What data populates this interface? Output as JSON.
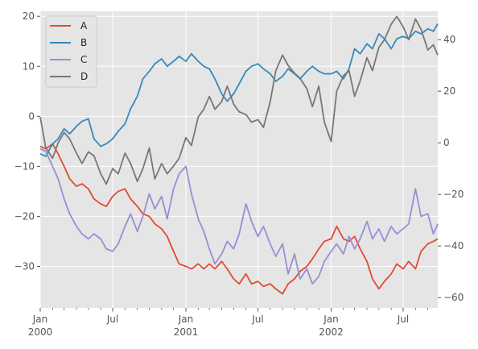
{
  "chart_data": {
    "type": "line",
    "title": "",
    "xlabel": "",
    "ylabel": "",
    "grid": true,
    "legend_position": "top-left",
    "x_range": [
      "2000-01-01",
      "2002-09-26"
    ],
    "x_ticks": [
      {
        "date": "2000-01-01",
        "label": "Jan",
        "sublabel": "2000"
      },
      {
        "date": "2000-07-01",
        "label": "Jul",
        "sublabel": ""
      },
      {
        "date": "2001-01-01",
        "label": "Jan",
        "sublabel": "2001"
      },
      {
        "date": "2001-07-01",
        "label": "Jul",
        "sublabel": ""
      },
      {
        "date": "2002-01-01",
        "label": "Jan",
        "sublabel": "2002"
      },
      {
        "date": "2002-07-01",
        "label": "Jul",
        "sublabel": ""
      }
    ],
    "y_left": {
      "ylim": [
        -38.3,
        21.0
      ],
      "ticks": [
        20,
        10,
        0,
        -10,
        -20,
        -30
      ]
    },
    "y_right": {
      "ylim": [
        -64,
        51
      ],
      "ticks": [
        40,
        20,
        0,
        -20,
        -40,
        -60
      ]
    },
    "series": [
      {
        "name": "A",
        "color": "#E24A33",
        "axis": "left",
        "points": [
          [
            "2000-01-01",
            -6.0
          ],
          [
            "2000-01-15",
            -6.5
          ],
          [
            "2000-02-01",
            -5.5
          ],
          [
            "2000-02-15",
            -7.5
          ],
          [
            "2000-03-01",
            -10.0
          ],
          [
            "2000-03-15",
            -12.5
          ],
          [
            "2000-04-01",
            -14.0
          ],
          [
            "2000-04-15",
            -13.5
          ],
          [
            "2000-05-01",
            -14.5
          ],
          [
            "2000-05-15",
            -16.5
          ],
          [
            "2000-06-01",
            -17.5
          ],
          [
            "2000-06-15",
            -18.0
          ],
          [
            "2000-07-01",
            -16.0
          ],
          [
            "2000-07-15",
            -15.0
          ],
          [
            "2000-08-01",
            -14.5
          ],
          [
            "2000-08-15",
            -16.5
          ],
          [
            "2000-09-01",
            -18.0
          ],
          [
            "2000-09-15",
            -19.5
          ],
          [
            "2000-10-01",
            -20.0
          ],
          [
            "2000-10-15",
            -21.5
          ],
          [
            "2000-11-01",
            -22.5
          ],
          [
            "2000-11-15",
            -24.0
          ],
          [
            "2000-12-01",
            -27.0
          ],
          [
            "2000-12-15",
            -29.5
          ],
          [
            "2001-01-01",
            -30.0
          ],
          [
            "2001-01-15",
            -30.5
          ],
          [
            "2001-02-01",
            -29.5
          ],
          [
            "2001-02-15",
            -30.5
          ],
          [
            "2001-03-01",
            -29.5
          ],
          [
            "2001-03-15",
            -30.5
          ],
          [
            "2001-04-01",
            -29.0
          ],
          [
            "2001-04-15",
            -30.5
          ],
          [
            "2001-05-01",
            -32.5
          ],
          [
            "2001-05-15",
            -33.5
          ],
          [
            "2001-06-01",
            -31.5
          ],
          [
            "2001-06-15",
            -33.5
          ],
          [
            "2001-07-01",
            -33.0
          ],
          [
            "2001-07-15",
            -34.0
          ],
          [
            "2001-08-01",
            -33.5
          ],
          [
            "2001-08-15",
            -34.5
          ],
          [
            "2001-09-01",
            -35.5
          ],
          [
            "2001-09-15",
            -33.5
          ],
          [
            "2001-10-01",
            -32.5
          ],
          [
            "2001-10-15",
            -31.0
          ],
          [
            "2001-11-01",
            -30.0
          ],
          [
            "2001-11-15",
            -28.5
          ],
          [
            "2001-12-01",
            -26.5
          ],
          [
            "2001-12-15",
            -25.0
          ],
          [
            "2002-01-01",
            -24.5
          ],
          [
            "2002-01-15",
            -22.0
          ],
          [
            "2002-02-01",
            -24.5
          ],
          [
            "2002-02-15",
            -25.0
          ],
          [
            "2002-03-01",
            -24.0
          ],
          [
            "2002-03-15",
            -26.5
          ],
          [
            "2002-04-01",
            -29.0
          ],
          [
            "2002-04-15",
            -32.5
          ],
          [
            "2002-05-01",
            -34.5
          ],
          [
            "2002-05-15",
            -33.0
          ],
          [
            "2002-06-01",
            -31.5
          ],
          [
            "2002-06-15",
            -29.5
          ],
          [
            "2002-07-01",
            -30.5
          ],
          [
            "2002-07-15",
            -29.0
          ],
          [
            "2002-08-01",
            -30.5
          ],
          [
            "2002-08-15",
            -27.0
          ],
          [
            "2002-09-01",
            -25.5
          ],
          [
            "2002-09-15",
            -25.0
          ],
          [
            "2002-09-26",
            -24.5
          ]
        ]
      },
      {
        "name": "B",
        "color": "#348ABD",
        "axis": "left",
        "points": [
          [
            "2000-01-01",
            -7.5
          ],
          [
            "2000-01-15",
            -8.0
          ],
          [
            "2000-02-01",
            -5.5
          ],
          [
            "2000-02-15",
            -4.5
          ],
          [
            "2000-03-01",
            -2.5
          ],
          [
            "2000-03-15",
            -3.5
          ],
          [
            "2000-04-01",
            -2.0
          ],
          [
            "2000-04-15",
            -1.0
          ],
          [
            "2000-05-01",
            -0.5
          ],
          [
            "2000-05-15",
            -4.5
          ],
          [
            "2000-06-01",
            -6.0
          ],
          [
            "2000-06-15",
            -5.5
          ],
          [
            "2000-07-01",
            -4.5
          ],
          [
            "2000-07-15",
            -3.0
          ],
          [
            "2000-08-01",
            -1.5
          ],
          [
            "2000-08-15",
            1.5
          ],
          [
            "2000-09-01",
            4.0
          ],
          [
            "2000-09-15",
            7.5
          ],
          [
            "2000-10-01",
            9.0
          ],
          [
            "2000-10-15",
            10.5
          ],
          [
            "2000-11-01",
            11.5
          ],
          [
            "2000-11-15",
            10.0
          ],
          [
            "2000-12-01",
            11.0
          ],
          [
            "2000-12-15",
            12.0
          ],
          [
            "2001-01-01",
            11.0
          ],
          [
            "2001-01-15",
            12.5
          ],
          [
            "2001-02-01",
            11.0
          ],
          [
            "2001-02-15",
            10.0
          ],
          [
            "2001-03-01",
            9.5
          ],
          [
            "2001-03-15",
            7.5
          ],
          [
            "2001-04-01",
            4.5
          ],
          [
            "2001-04-15",
            3.0
          ],
          [
            "2001-05-01",
            4.5
          ],
          [
            "2001-05-15",
            6.5
          ],
          [
            "2001-06-01",
            9.0
          ],
          [
            "2001-06-15",
            10.0
          ],
          [
            "2001-07-01",
            10.5
          ],
          [
            "2001-07-15",
            9.5
          ],
          [
            "2001-08-01",
            8.5
          ],
          [
            "2001-08-15",
            7.0
          ],
          [
            "2001-09-01",
            8.0
          ],
          [
            "2001-09-15",
            9.5
          ],
          [
            "2001-10-01",
            8.5
          ],
          [
            "2001-10-15",
            7.5
          ],
          [
            "2001-11-01",
            9.0
          ],
          [
            "2001-11-15",
            10.0
          ],
          [
            "2001-12-01",
            9.0
          ],
          [
            "2001-12-15",
            8.5
          ],
          [
            "2002-01-01",
            8.5
          ],
          [
            "2002-01-15",
            9.0
          ],
          [
            "2002-02-01",
            7.5
          ],
          [
            "2002-02-15",
            9.5
          ],
          [
            "2002-03-01",
            13.5
          ],
          [
            "2002-03-15",
            12.5
          ],
          [
            "2002-04-01",
            14.5
          ],
          [
            "2002-04-15",
            13.5
          ],
          [
            "2002-05-01",
            16.5
          ],
          [
            "2002-05-15",
            15.5
          ],
          [
            "2002-06-01",
            13.5
          ],
          [
            "2002-06-15",
            15.5
          ],
          [
            "2002-07-01",
            16.0
          ],
          [
            "2002-07-15",
            15.5
          ],
          [
            "2002-08-01",
            17.0
          ],
          [
            "2002-08-15",
            16.5
          ],
          [
            "2002-09-01",
            17.5
          ],
          [
            "2002-09-15",
            17.0
          ],
          [
            "2002-09-26",
            18.5
          ]
        ]
      },
      {
        "name": "C",
        "color": "#988ED5",
        "axis": "left",
        "points": [
          [
            "2000-01-01",
            -6.5
          ],
          [
            "2000-01-15",
            -7.0
          ],
          [
            "2000-02-01",
            -10.0
          ],
          [
            "2000-02-15",
            -12.5
          ],
          [
            "2000-03-01",
            -16.5
          ],
          [
            "2000-03-15",
            -19.5
          ],
          [
            "2000-04-01",
            -22.0
          ],
          [
            "2000-04-15",
            -23.5
          ],
          [
            "2000-05-01",
            -24.5
          ],
          [
            "2000-05-15",
            -23.5
          ],
          [
            "2000-06-01",
            -24.5
          ],
          [
            "2000-06-15",
            -26.5
          ],
          [
            "2000-07-01",
            -27.0
          ],
          [
            "2000-07-15",
            -25.5
          ],
          [
            "2000-08-01",
            -22.0
          ],
          [
            "2000-08-15",
            -19.5
          ],
          [
            "2000-09-01",
            -23.0
          ],
          [
            "2000-09-15",
            -20.0
          ],
          [
            "2000-10-01",
            -15.5
          ],
          [
            "2000-10-15",
            -18.5
          ],
          [
            "2000-11-01",
            -16.0
          ],
          [
            "2000-11-15",
            -20.5
          ],
          [
            "2000-12-01",
            -14.5
          ],
          [
            "2000-12-15",
            -11.5
          ],
          [
            "2001-01-01",
            -10.0
          ],
          [
            "2001-01-15",
            -15.5
          ],
          [
            "2001-02-01",
            -20.5
          ],
          [
            "2001-02-15",
            -23.0
          ],
          [
            "2001-03-01",
            -26.5
          ],
          [
            "2001-03-15",
            -29.5
          ],
          [
            "2001-04-01",
            -27.5
          ],
          [
            "2001-04-15",
            -25.0
          ],
          [
            "2001-05-01",
            -26.5
          ],
          [
            "2001-05-15",
            -23.5
          ],
          [
            "2001-06-01",
            -17.5
          ],
          [
            "2001-06-15",
            -21.0
          ],
          [
            "2001-07-01",
            -24.0
          ],
          [
            "2001-07-15",
            -22.0
          ],
          [
            "2001-08-01",
            -25.5
          ],
          [
            "2001-08-15",
            -28.0
          ],
          [
            "2001-09-01",
            -25.5
          ],
          [
            "2001-09-15",
            -31.5
          ],
          [
            "2001-10-01",
            -27.5
          ],
          [
            "2001-10-15",
            -32.5
          ],
          [
            "2001-11-01",
            -30.5
          ],
          [
            "2001-11-15",
            -33.5
          ],
          [
            "2001-12-01",
            -32.0
          ],
          [
            "2001-12-15",
            -29.0
          ],
          [
            "2002-01-01",
            -27.0
          ],
          [
            "2002-01-15",
            -25.5
          ],
          [
            "2002-02-01",
            -27.5
          ],
          [
            "2002-02-15",
            -24.0
          ],
          [
            "2002-03-01",
            -26.5
          ],
          [
            "2002-03-15",
            -24.5
          ],
          [
            "2002-04-01",
            -21.0
          ],
          [
            "2002-04-15",
            -24.5
          ],
          [
            "2002-05-01",
            -22.5
          ],
          [
            "2002-05-15",
            -25.0
          ],
          [
            "2002-06-01",
            -22.0
          ],
          [
            "2002-06-15",
            -23.5
          ],
          [
            "2002-07-01",
            -22.5
          ],
          [
            "2002-07-15",
            -21.5
          ],
          [
            "2002-08-01",
            -14.5
          ],
          [
            "2002-08-15",
            -20.0
          ],
          [
            "2002-09-01",
            -19.5
          ],
          [
            "2002-09-15",
            -23.5
          ],
          [
            "2002-09-26",
            -21.5
          ]
        ]
      },
      {
        "name": "D",
        "color": "#777777",
        "axis": "right",
        "points": [
          [
            "2000-01-01",
            10.0
          ],
          [
            "2000-01-15",
            -2.0
          ],
          [
            "2000-02-01",
            -6.0
          ],
          [
            "2000-02-15",
            0.0
          ],
          [
            "2000-03-01",
            4.0
          ],
          [
            "2000-03-15",
            1.5
          ],
          [
            "2000-04-01",
            -4.0
          ],
          [
            "2000-04-15",
            -8.0
          ],
          [
            "2000-05-01",
            -3.5
          ],
          [
            "2000-05-15",
            -5.0
          ],
          [
            "2000-06-01",
            -12.0
          ],
          [
            "2000-06-15",
            -16.0
          ],
          [
            "2000-07-01",
            -10.0
          ],
          [
            "2000-07-15",
            -12.0
          ],
          [
            "2000-08-01",
            -4.0
          ],
          [
            "2000-08-15",
            -8.0
          ],
          [
            "2000-09-01",
            -15.0
          ],
          [
            "2000-09-15",
            -10.0
          ],
          [
            "2000-10-01",
            -2.0
          ],
          [
            "2000-10-15",
            -14.0
          ],
          [
            "2000-11-01",
            -8.0
          ],
          [
            "2000-11-15",
            -12.0
          ],
          [
            "2000-12-01",
            -9.0
          ],
          [
            "2000-12-15",
            -6.0
          ],
          [
            "2001-01-01",
            2.0
          ],
          [
            "2001-01-15",
            -1.0
          ],
          [
            "2001-02-01",
            10.0
          ],
          [
            "2001-02-15",
            13.0
          ],
          [
            "2001-03-01",
            18.0
          ],
          [
            "2001-03-15",
            13.0
          ],
          [
            "2001-04-01",
            16.0
          ],
          [
            "2001-04-15",
            22.0
          ],
          [
            "2001-05-01",
            15.0
          ],
          [
            "2001-05-15",
            12.0
          ],
          [
            "2001-06-01",
            11.0
          ],
          [
            "2001-06-15",
            8.0
          ],
          [
            "2001-07-01",
            9.0
          ],
          [
            "2001-07-15",
            6.0
          ],
          [
            "2001-08-01",
            16.0
          ],
          [
            "2001-08-15",
            28.0
          ],
          [
            "2001-09-01",
            34.0
          ],
          [
            "2001-09-15",
            30.0
          ],
          [
            "2001-10-01",
            27.0
          ],
          [
            "2001-10-15",
            25.0
          ],
          [
            "2001-11-01",
            21.0
          ],
          [
            "2001-11-15",
            14.0
          ],
          [
            "2001-12-01",
            22.0
          ],
          [
            "2001-12-15",
            8.0
          ],
          [
            "2002-01-01",
            0.5
          ],
          [
            "2002-01-15",
            20.0
          ],
          [
            "2002-02-01",
            26.0
          ],
          [
            "2002-02-15",
            28.0
          ],
          [
            "2002-03-01",
            18.0
          ],
          [
            "2002-03-15",
            24.0
          ],
          [
            "2002-04-01",
            33.0
          ],
          [
            "2002-04-15",
            28.0
          ],
          [
            "2002-05-01",
            37.0
          ],
          [
            "2002-05-15",
            40.0
          ],
          [
            "2002-06-01",
            46.0
          ],
          [
            "2002-06-15",
            49.0
          ],
          [
            "2002-07-01",
            45.0
          ],
          [
            "2002-07-15",
            40.0
          ],
          [
            "2002-08-01",
            48.0
          ],
          [
            "2002-08-15",
            44.0
          ],
          [
            "2002-09-01",
            36.0
          ],
          [
            "2002-09-15",
            38.0
          ],
          [
            "2002-09-26",
            34.0
          ]
        ]
      }
    ]
  }
}
